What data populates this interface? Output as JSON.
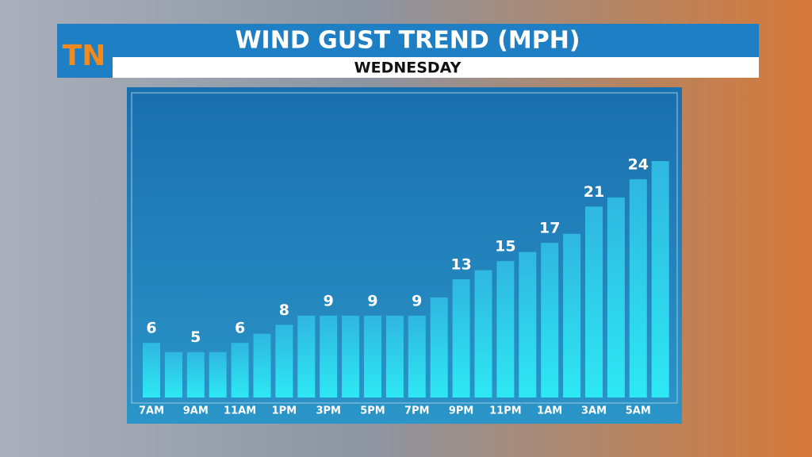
{
  "logo": "TN",
  "chart_data": {
    "type": "bar",
    "title": "WIND GUST TREND (MPH)",
    "subtitle": "WEDNESDAY",
    "categories": [
      "7AM",
      null,
      "9AM",
      null,
      "11AM",
      null,
      "1PM",
      null,
      "3PM",
      null,
      "5PM",
      null,
      "7PM",
      null,
      "9PM",
      null,
      "11PM",
      null,
      "1AM",
      null,
      "3AM",
      null,
      "5AM",
      null
    ],
    "values": [
      6,
      5,
      5,
      5,
      6,
      7,
      8,
      9,
      9,
      9,
      9,
      9,
      9,
      11,
      13,
      14,
      15,
      16,
      17,
      18,
      21,
      22,
      24,
      26
    ],
    "value_labels": [
      "6",
      null,
      "5",
      null,
      "6",
      null,
      "8",
      null,
      "9",
      null,
      "9",
      null,
      "9",
      null,
      "13",
      null,
      "15",
      null,
      "17",
      null,
      "21",
      null,
      "24",
      null
    ],
    "color": "#2ee0f0"
  }
}
